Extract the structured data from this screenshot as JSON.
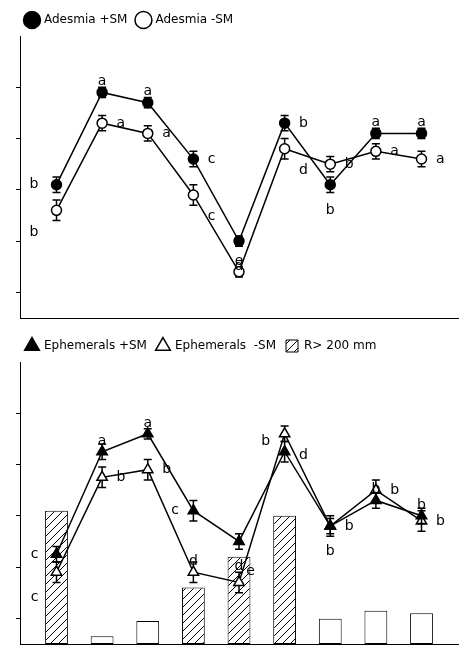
{
  "chart_data": [
    {
      "type": "line",
      "x": [
        1,
        2,
        3,
        4,
        5,
        6,
        7,
        8,
        9
      ],
      "series": [
        {
          "name": "Adesmia +SM",
          "color": "#000000",
          "marker": "circle",
          "values": [
            42,
            78,
            74,
            52,
            20,
            66,
            42,
            62,
            62
          ],
          "errors": [
            3,
            2,
            2,
            3,
            2,
            3,
            3,
            2,
            2
          ],
          "annotations": [
            "b",
            "a",
            "a",
            "c",
            "d",
            "b",
            "b",
            "a",
            "a"
          ]
        },
        {
          "name": "Adesmia -SM",
          "color": "#000000",
          "marker": "circle-open",
          "values": [
            32,
            66,
            62,
            38,
            8,
            56,
            50,
            55,
            52
          ],
          "errors": [
            4,
            3,
            3,
            4,
            2,
            4,
            3,
            3,
            3
          ],
          "annotations": [
            "b",
            "a",
            "a",
            "c",
            "e",
            "d",
            "b",
            "a",
            "a"
          ]
        }
      ],
      "xlim": [
        0.2,
        9.8
      ],
      "ylim": [
        -10,
        100
      ],
      "yticks": [
        0,
        20,
        40,
        60,
        80
      ],
      "tick_labels": false,
      "grid": false,
      "legend": "top"
    },
    {
      "type": "line",
      "x": [
        1,
        2,
        3,
        4,
        5,
        6,
        7,
        8,
        9
      ],
      "bar_bottom": -10,
      "series": [
        {
          "name": "R> 200 mm",
          "type": "bar",
          "color": "#000000",
          "line_style": "hatched",
          "x": [
            1,
            4,
            5,
            6
          ],
          "values": [
            52,
            22,
            34,
            50
          ]
        },
        {
          "type": "bar",
          "color": "#000000",
          "line_style": "solid",
          "x": [
            2,
            3,
            7,
            8,
            9
          ],
          "values": [
            3,
            9,
            10,
            13,
            12
          ]
        },
        {
          "name": "Ephemerals +SM",
          "color": "#000000",
          "marker": "triangle",
          "values": [
            25,
            65,
            72,
            42,
            30,
            65,
            36,
            46,
            40
          ],
          "errors": [
            3,
            3,
            2,
            4,
            3,
            4,
            3,
            3,
            3
          ],
          "annotations": [
            "c",
            "a",
            "a",
            "c",
            "d",
            "b",
            "b",
            "b",
            "b"
          ]
        },
        {
          "name": "Ephemerals  -SM",
          "color": "#000000",
          "marker": "triangle-open",
          "values": [
            18,
            55,
            58,
            18,
            14,
            72,
            36,
            50,
            38
          ],
          "errors": [
            4,
            4,
            4,
            4,
            4,
            3,
            4,
            4,
            4
          ],
          "annotations": [
            "c",
            "b",
            "b",
            "d",
            "e",
            "d",
            "b",
            "b",
            "b"
          ]
        }
      ],
      "xlim": [
        0.2,
        9.8
      ],
      "ylim": [
        -10,
        100
      ],
      "yticks": [
        0,
        20,
        40,
        60,
        80
      ],
      "tick_labels": false,
      "grid": false,
      "legend": "top"
    }
  ]
}
